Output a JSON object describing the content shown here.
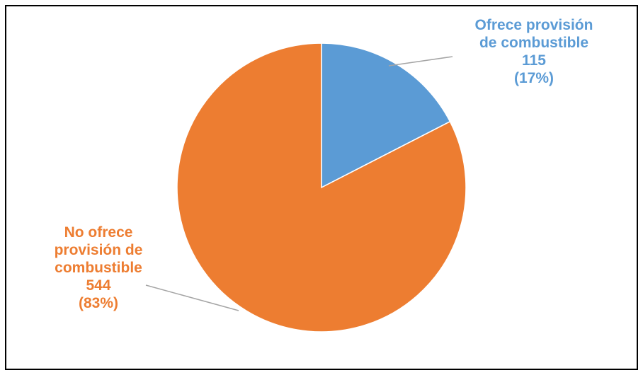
{
  "chart_data": {
    "type": "pie",
    "title": "",
    "slices": [
      {
        "name": "Ofrece provisión de combustible",
        "lines": [
          "Ofrece provisión",
          "de combustible"
        ],
        "value": 115,
        "percent_label": "(17%)",
        "color": "#5b9bd5"
      },
      {
        "name": "No ofrece provisión de combustible",
        "lines": [
          "No ofrece",
          "provisión de",
          "combustible"
        ],
        "value": 544,
        "percent_label": "(83%)",
        "color": "#ed7d31"
      }
    ],
    "legend": "none",
    "leader_line_color": "#a5a5a5"
  }
}
